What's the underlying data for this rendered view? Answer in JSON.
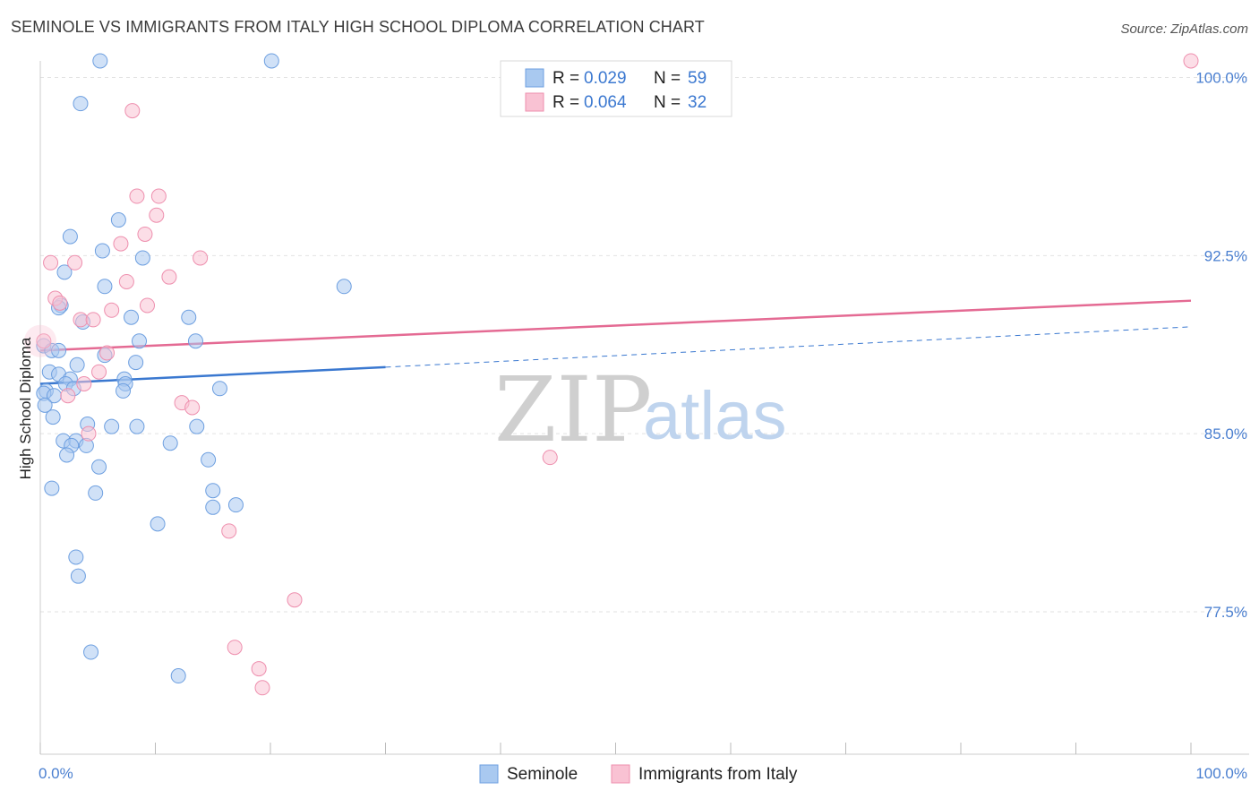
{
  "title": "SEMINOLE VS IMMIGRANTS FROM ITALY HIGH SCHOOL DIPLOMA CORRELATION CHART",
  "source": "Source: ZipAtlas.com",
  "watermark": {
    "zip": "ZIP",
    "atlas": "atlas"
  },
  "legend_top": [
    {
      "r_label": "R =",
      "r_value": "0.029",
      "n_label": "N =",
      "n_value": "59",
      "color": "#a9c9f0",
      "stroke": "#6d9fe0"
    },
    {
      "r_label": "R =",
      "r_value": "0.064",
      "n_label": "N =",
      "n_value": "32",
      "color": "#f9c2d3",
      "stroke": "#ee8fae"
    }
  ],
  "legend_bottom": [
    {
      "label": "Seminole",
      "color": "#a9c9f0",
      "stroke": "#6d9fe0"
    },
    {
      "label": "Immigrants from Italy",
      "color": "#f9c2d3",
      "stroke": "#ee8fae"
    }
  ],
  "chart_data": {
    "type": "scatter",
    "title": "SEMINOLE VS IMMIGRANTS FROM ITALY HIGH SCHOOL DIPLOMA CORRELATION CHART",
    "xlabel": "",
    "ylabel": "High School Diploma",
    "xlim": [
      0,
      100
    ],
    "ylim": [
      71.5,
      101
    ],
    "x_tick_labels": [
      "0.0%",
      "100.0%"
    ],
    "y_ticks": [
      77.5,
      85.0,
      92.5,
      100.0
    ],
    "y_tick_labels": [
      "77.5%",
      "85.0%",
      "92.5%",
      "100.0%"
    ],
    "grid": true,
    "series": [
      {
        "name": "Seminole",
        "color": "#a9c9f0",
        "stroke": "#6d9fe0",
        "trend": {
          "x": [
            0,
            30
          ],
          "y": [
            87.1,
            87.8
          ],
          "dash_to": [
            100,
            89.5
          ],
          "color": "#3a78d0"
        },
        "points": [
          [
            5.2,
            100.7
          ],
          [
            20.1,
            100.7
          ],
          [
            3.5,
            98.9
          ],
          [
            6.8,
            94.0
          ],
          [
            2.6,
            93.3
          ],
          [
            5.4,
            92.7
          ],
          [
            8.9,
            92.4
          ],
          [
            2.1,
            91.8
          ],
          [
            5.6,
            91.2
          ],
          [
            26.4,
            91.2
          ],
          [
            1.8,
            90.4
          ],
          [
            1.6,
            90.3
          ],
          [
            7.9,
            89.9
          ],
          [
            12.9,
            89.9
          ],
          [
            3.7,
            89.7
          ],
          [
            8.6,
            88.9
          ],
          [
            13.5,
            88.9
          ],
          [
            0.3,
            88.7
          ],
          [
            1.0,
            88.5
          ],
          [
            1.6,
            88.5
          ],
          [
            5.6,
            88.3
          ],
          [
            8.3,
            88.0
          ],
          [
            3.2,
            87.9
          ],
          [
            0.8,
            87.6
          ],
          [
            1.6,
            87.5
          ],
          [
            2.6,
            87.3
          ],
          [
            7.3,
            87.3
          ],
          [
            7.4,
            87.1
          ],
          [
            2.2,
            87.1
          ],
          [
            0.5,
            86.8
          ],
          [
            2.9,
            86.9
          ],
          [
            15.6,
            86.9
          ],
          [
            7.2,
            86.8
          ],
          [
            0.3,
            86.7
          ],
          [
            1.2,
            86.6
          ],
          [
            1.1,
            85.7
          ],
          [
            4.1,
            85.4
          ],
          [
            6.2,
            85.3
          ],
          [
            8.4,
            85.3
          ],
          [
            13.6,
            85.3
          ],
          [
            2.0,
            84.7
          ],
          [
            3.1,
            84.7
          ],
          [
            2.7,
            84.5
          ],
          [
            4.0,
            84.5
          ],
          [
            11.3,
            84.6
          ],
          [
            2.3,
            84.1
          ],
          [
            14.6,
            83.9
          ],
          [
            5.1,
            83.6
          ],
          [
            1.0,
            82.7
          ],
          [
            4.8,
            82.5
          ],
          [
            15.0,
            82.6
          ],
          [
            17.0,
            82.0
          ],
          [
            15.0,
            81.9
          ],
          [
            10.2,
            81.2
          ],
          [
            3.1,
            79.8
          ],
          [
            3.3,
            79.0
          ],
          [
            4.4,
            75.8
          ],
          [
            12.0,
            74.8
          ],
          [
            0.4,
            86.2
          ]
        ]
      },
      {
        "name": "Immigrants from Italy",
        "color": "#f9c2d3",
        "stroke": "#ee8fae",
        "trend": {
          "x": [
            0,
            100
          ],
          "y": [
            88.5,
            90.6
          ],
          "color": "#e46a93"
        },
        "points": [
          [
            100,
            100.7
          ],
          [
            8.0,
            98.6
          ],
          [
            8.4,
            95.0
          ],
          [
            10.3,
            95.0
          ],
          [
            10.1,
            94.2
          ],
          [
            9.1,
            93.4
          ],
          [
            7.0,
            93.0
          ],
          [
            13.9,
            92.4
          ],
          [
            0.9,
            92.2
          ],
          [
            3.0,
            92.2
          ],
          [
            11.2,
            91.6
          ],
          [
            7.5,
            91.4
          ],
          [
            1.3,
            90.7
          ],
          [
            1.7,
            90.5
          ],
          [
            9.3,
            90.4
          ],
          [
            6.2,
            90.2
          ],
          [
            3.5,
            89.8
          ],
          [
            4.6,
            89.8
          ],
          [
            0.3,
            88.9
          ],
          [
            5.8,
            88.4
          ],
          [
            5.1,
            87.6
          ],
          [
            3.8,
            87.1
          ],
          [
            2.4,
            86.6
          ],
          [
            12.3,
            86.3
          ],
          [
            13.2,
            86.1
          ],
          [
            4.2,
            85.0
          ],
          [
            44.3,
            84.0
          ],
          [
            16.4,
            80.9
          ],
          [
            22.1,
            78.0
          ],
          [
            16.9,
            76.0
          ],
          [
            19.0,
            75.1
          ],
          [
            19.3,
            74.3
          ]
        ]
      }
    ],
    "annotations": []
  }
}
